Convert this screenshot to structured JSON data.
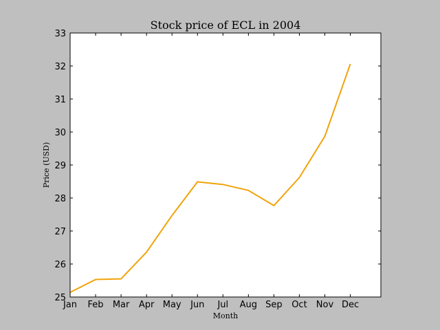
{
  "chart_data": {
    "type": "line",
    "title": "Stock price of ECL in 2004",
    "xlabel": "Month",
    "ylabel": "Price (USD)",
    "categories": [
      "Jan",
      "Feb",
      "Mar",
      "Apr",
      "May",
      "Jun",
      "Jul",
      "Aug",
      "Sep",
      "Oct",
      "Nov",
      "Dec"
    ],
    "series": [
      {
        "values": [
          25.14,
          25.53,
          25.55,
          26.36,
          27.47,
          28.49,
          28.41,
          28.23,
          27.77,
          28.62,
          29.87,
          32.06
        ],
        "color": "#f0a30a"
      }
    ],
    "ylim": [
      25,
      33
    ],
    "yticks": [
      "25",
      "26",
      "27",
      "28",
      "29",
      "30",
      "31",
      "32",
      "33"
    ],
    "x_slots": 12.2,
    "grid": false,
    "legend": "none"
  },
  "colors": {
    "background": "#bfbfbf",
    "plot_area": "#ffffff",
    "line": "#f0a30a"
  }
}
